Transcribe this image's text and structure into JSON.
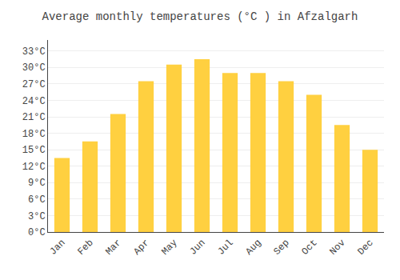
{
  "chart_data": {
    "type": "bar",
    "title": "Average monthly temperatures (°C ) in Afzalgarh",
    "categories": [
      "Jan",
      "Feb",
      "Mar",
      "Apr",
      "May",
      "Jun",
      "Jul",
      "Aug",
      "Sep",
      "Oct",
      "Nov",
      "Dec"
    ],
    "values": [
      13.5,
      16.5,
      21.5,
      27.5,
      30.5,
      31.5,
      29.0,
      29.0,
      27.5,
      25.0,
      19.5,
      15.0
    ],
    "color": "#FFD040",
    "ylim": [
      0,
      35
    ],
    "yticks": [
      {
        "value": 0,
        "label": "0°C"
      },
      {
        "value": 3,
        "label": "3°C"
      },
      {
        "value": 6,
        "label": "6°C"
      },
      {
        "value": 9,
        "label": "9°C"
      },
      {
        "value": 12,
        "label": "12°C"
      },
      {
        "value": 15,
        "label": "15°C"
      },
      {
        "value": 18,
        "label": "18°C"
      },
      {
        "value": 21,
        "label": "21°C"
      },
      {
        "value": 24,
        "label": "24°C"
      },
      {
        "value": 27,
        "label": "27°C"
      },
      {
        "value": 30,
        "label": "30°C"
      },
      {
        "value": 33,
        "label": "33°C"
      }
    ],
    "grid": true
  }
}
